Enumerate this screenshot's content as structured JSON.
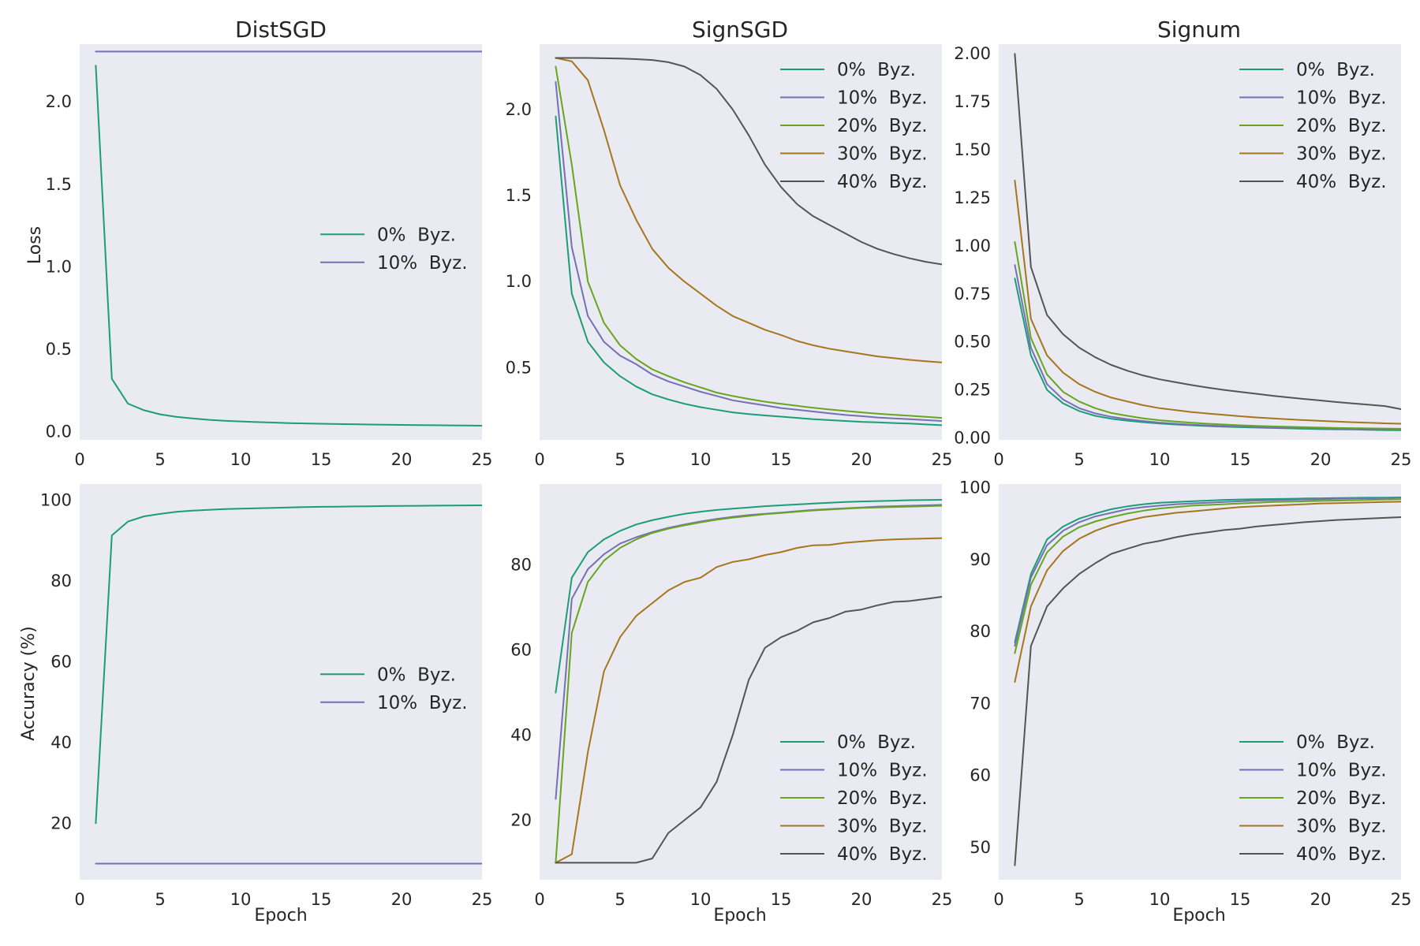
{
  "chart_data": [
    {
      "id": "distsgd-loss",
      "type": "line",
      "title": "DistSGD",
      "xlabel": "",
      "ylabel": "Loss",
      "xlim": [
        0,
        25
      ],
      "ylim": [
        -0.05,
        2.35
      ],
      "xticks": [
        0,
        5,
        10,
        15,
        20,
        25
      ],
      "xticklabels": [
        "0",
        "5",
        "10",
        "15",
        "20",
        "25"
      ],
      "yticks": [
        0.0,
        0.5,
        1.0,
        1.5,
        2.0
      ],
      "yticklabels": [
        "0.0",
        "0.5",
        "1.0",
        "1.5",
        "2.0"
      ],
      "legend": "center-right",
      "grid": false,
      "x": [
        1,
        2,
        3,
        4,
        5,
        6,
        7,
        8,
        9,
        10,
        11,
        12,
        13,
        14,
        15,
        16,
        17,
        18,
        19,
        20,
        21,
        22,
        23,
        24,
        25
      ],
      "series": [
        {
          "name": "0%  Byz.",
          "color": "#1b9e77",
          "values": [
            2.22,
            0.32,
            0.17,
            0.13,
            0.105,
            0.09,
            0.08,
            0.072,
            0.066,
            0.062,
            0.058,
            0.055,
            0.052,
            0.05,
            0.048,
            0.046,
            0.045,
            0.043,
            0.042,
            0.041,
            0.04,
            0.039,
            0.038,
            0.037,
            0.036
          ]
        },
        {
          "name": "10%  Byz.",
          "color": "#7570b3",
          "values": [
            2.305,
            2.305,
            2.305,
            2.305,
            2.305,
            2.305,
            2.305,
            2.305,
            2.305,
            2.305,
            2.305,
            2.305,
            2.305,
            2.305,
            2.305,
            2.305,
            2.305,
            2.305,
            2.305,
            2.305,
            2.305,
            2.305,
            2.305,
            2.305,
            2.305
          ]
        }
      ]
    },
    {
      "id": "signsgd-loss",
      "type": "line",
      "title": "SignSGD",
      "xlabel": "",
      "ylabel": "",
      "xlim": [
        0,
        25
      ],
      "ylim": [
        0.08,
        2.38
      ],
      "xticks": [
        0,
        5,
        10,
        15,
        20,
        25
      ],
      "xticklabels": [
        "0",
        "5",
        "10",
        "15",
        "20",
        "25"
      ],
      "yticks": [
        0.5,
        1.0,
        1.5,
        2.0
      ],
      "yticklabels": [
        "0.5",
        "1.0",
        "1.5",
        "2.0"
      ],
      "legend": "top-right",
      "grid": false,
      "x": [
        1,
        2,
        3,
        4,
        5,
        6,
        7,
        8,
        9,
        10,
        11,
        12,
        13,
        14,
        15,
        16,
        17,
        18,
        19,
        20,
        21,
        22,
        23,
        24,
        25
      ],
      "series": [
        {
          "name": "0%  Byz.",
          "color": "#1b9e77",
          "values": [
            1.96,
            0.93,
            0.65,
            0.53,
            0.45,
            0.39,
            0.345,
            0.315,
            0.29,
            0.27,
            0.255,
            0.24,
            0.23,
            0.222,
            0.215,
            0.208,
            0.2,
            0.195,
            0.19,
            0.185,
            0.182,
            0.178,
            0.175,
            0.17,
            0.165
          ]
        },
        {
          "name": "10%  Byz.",
          "color": "#7570b3",
          "values": [
            2.16,
            1.2,
            0.8,
            0.65,
            0.57,
            0.52,
            0.46,
            0.42,
            0.39,
            0.36,
            0.335,
            0.31,
            0.295,
            0.28,
            0.265,
            0.255,
            0.245,
            0.235,
            0.225,
            0.218,
            0.21,
            0.205,
            0.2,
            0.195,
            0.19
          ]
        },
        {
          "name": "20%  Byz.",
          "color": "#66a61e",
          "values": [
            2.25,
            1.68,
            1.0,
            0.76,
            0.63,
            0.55,
            0.49,
            0.45,
            0.415,
            0.385,
            0.355,
            0.335,
            0.318,
            0.302,
            0.29,
            0.278,
            0.267,
            0.257,
            0.248,
            0.24,
            0.232,
            0.226,
            0.22,
            0.214,
            0.208
          ]
        },
        {
          "name": "30%  Byz.",
          "color": "#a6761d",
          "values": [
            2.3,
            2.28,
            2.17,
            1.88,
            1.56,
            1.36,
            1.19,
            1.08,
            1.0,
            0.93,
            0.86,
            0.8,
            0.76,
            0.72,
            0.69,
            0.655,
            0.63,
            0.61,
            0.595,
            0.58,
            0.565,
            0.555,
            0.545,
            0.537,
            0.53
          ]
        },
        {
          "name": "40%  Byz.",
          "color": "#555555",
          "values": [
            2.3,
            2.3,
            2.3,
            2.298,
            2.296,
            2.293,
            2.288,
            2.275,
            2.25,
            2.2,
            2.12,
            2.0,
            1.85,
            1.68,
            1.55,
            1.45,
            1.38,
            1.33,
            1.28,
            1.23,
            1.19,
            1.16,
            1.135,
            1.115,
            1.1
          ]
        }
      ]
    },
    {
      "id": "signum-loss",
      "type": "line",
      "title": "Signum",
      "xlabel": "",
      "ylabel": "",
      "xlim": [
        0,
        25
      ],
      "ylim": [
        -0.01,
        2.05
      ],
      "xticks": [
        0,
        5,
        10,
        15,
        20,
        25
      ],
      "xticklabels": [
        "0",
        "5",
        "10",
        "15",
        "20",
        "25"
      ],
      "yticks": [
        0.0,
        0.25,
        0.5,
        0.75,
        1.0,
        1.25,
        1.5,
        1.75,
        2.0
      ],
      "yticklabels": [
        "0.00",
        "0.25",
        "0.50",
        "0.75",
        "1.00",
        "1.25",
        "1.50",
        "1.75",
        "2.00"
      ],
      "legend": "top-right",
      "grid": false,
      "x": [
        1,
        2,
        3,
        4,
        5,
        6,
        7,
        8,
        9,
        10,
        11,
        12,
        13,
        14,
        15,
        16,
        17,
        18,
        19,
        20,
        21,
        22,
        23,
        24,
        25
      ],
      "series": [
        {
          "name": "0%  Byz.",
          "color": "#1b9e77",
          "values": [
            0.83,
            0.43,
            0.25,
            0.18,
            0.14,
            0.115,
            0.1,
            0.09,
            0.082,
            0.075,
            0.07,
            0.066,
            0.062,
            0.059,
            0.056,
            0.054,
            0.052,
            0.05,
            0.048,
            0.046,
            0.045,
            0.044,
            0.042,
            0.041,
            0.04
          ]
        },
        {
          "name": "10%  Byz.",
          "color": "#7570b3",
          "values": [
            0.9,
            0.47,
            0.28,
            0.2,
            0.155,
            0.128,
            0.11,
            0.098,
            0.088,
            0.08,
            0.074,
            0.069,
            0.065,
            0.062,
            0.059,
            0.057,
            0.055,
            0.053,
            0.051,
            0.05,
            0.049,
            0.048,
            0.047,
            0.046,
            0.045
          ]
        },
        {
          "name": "20%  Byz.",
          "color": "#66a61e",
          "values": [
            1.02,
            0.52,
            0.33,
            0.24,
            0.19,
            0.155,
            0.13,
            0.115,
            0.102,
            0.092,
            0.085,
            0.079,
            0.074,
            0.07,
            0.066,
            0.063,
            0.06,
            0.058,
            0.056,
            0.054,
            0.052,
            0.051,
            0.05,
            0.049,
            0.048
          ]
        },
        {
          "name": "30%  Byz.",
          "color": "#a6761d",
          "values": [
            1.34,
            0.62,
            0.43,
            0.34,
            0.28,
            0.24,
            0.21,
            0.19,
            0.17,
            0.155,
            0.145,
            0.135,
            0.127,
            0.12,
            0.113,
            0.107,
            0.102,
            0.097,
            0.093,
            0.089,
            0.085,
            0.082,
            0.079,
            0.076,
            0.074
          ]
        },
        {
          "name": "40%  Byz.",
          "color": "#555555",
          "values": [
            2.0,
            0.89,
            0.64,
            0.54,
            0.47,
            0.42,
            0.38,
            0.35,
            0.325,
            0.305,
            0.29,
            0.275,
            0.262,
            0.25,
            0.24,
            0.23,
            0.22,
            0.211,
            0.203,
            0.195,
            0.187,
            0.18,
            0.173,
            0.166,
            0.15
          ]
        }
      ]
    },
    {
      "id": "distsgd-accuracy",
      "type": "line",
      "title": "",
      "xlabel": "Epoch",
      "ylabel": "Accuracy (%)",
      "xlim": [
        0,
        25
      ],
      "ylim": [
        6,
        104
      ],
      "xticks": [
        0,
        5,
        10,
        15,
        20,
        25
      ],
      "xticklabels": [
        "0",
        "5",
        "10",
        "15",
        "20",
        "25"
      ],
      "yticks": [
        20,
        40,
        60,
        80,
        100
      ],
      "yticklabels": [
        "20",
        "40",
        "60",
        "80",
        "100"
      ],
      "legend": "center-right",
      "grid": false,
      "x": [
        1,
        2,
        3,
        4,
        5,
        6,
        7,
        8,
        9,
        10,
        11,
        12,
        13,
        14,
        15,
        16,
        17,
        18,
        19,
        20,
        21,
        22,
        23,
        24,
        25
      ],
      "series": [
        {
          "name": "0%  Byz.",
          "color": "#1b9e77",
          "values": [
            20,
            91.3,
            94.7,
            96.0,
            96.6,
            97.1,
            97.4,
            97.6,
            97.8,
            97.9,
            98.0,
            98.1,
            98.2,
            98.3,
            98.35,
            98.4,
            98.45,
            98.5,
            98.55,
            98.6,
            98.62,
            98.65,
            98.68,
            98.7,
            98.72
          ]
        },
        {
          "name": "10%  Byz.",
          "color": "#7570b3",
          "values": [
            10,
            10,
            10,
            10,
            10,
            10,
            10,
            10,
            10,
            10,
            10,
            10,
            10,
            10,
            10,
            10,
            10,
            10,
            10,
            10,
            10,
            10,
            10,
            10,
            10
          ]
        }
      ]
    },
    {
      "id": "signsgd-accuracy",
      "type": "line",
      "title": "",
      "xlabel": "Epoch",
      "ylabel": "",
      "xlim": [
        0,
        25
      ],
      "ylim": [
        6,
        99
      ],
      "xticks": [
        0,
        5,
        10,
        15,
        20,
        25
      ],
      "xticklabels": [
        "0",
        "5",
        "10",
        "15",
        "20",
        "25"
      ],
      "yticks": [
        20,
        40,
        60,
        80
      ],
      "yticklabels": [
        "20",
        "40",
        "60",
        "80"
      ],
      "legend": "bottom-right",
      "grid": false,
      "x": [
        1,
        2,
        3,
        4,
        5,
        6,
        7,
        8,
        9,
        10,
        11,
        12,
        13,
        14,
        15,
        16,
        17,
        18,
        19,
        20,
        21,
        22,
        23,
        24,
        25
      ],
      "series": [
        {
          "name": "0%  Byz.",
          "color": "#1b9e77",
          "values": [
            50,
            77,
            83,
            86,
            88,
            89.5,
            90.5,
            91.3,
            92.0,
            92.5,
            92.9,
            93.2,
            93.5,
            93.8,
            94.0,
            94.2,
            94.4,
            94.6,
            94.8,
            94.9,
            95.0,
            95.1,
            95.2,
            95.25,
            95.3
          ]
        },
        {
          "name": "10%  Byz.",
          "color": "#7570b3",
          "values": [
            25,
            72,
            79,
            82.5,
            85,
            86.5,
            87.7,
            88.7,
            89.5,
            90.2,
            90.8,
            91.3,
            91.7,
            92.0,
            92.3,
            92.6,
            92.9,
            93.1,
            93.3,
            93.5,
            93.7,
            93.8,
            93.9,
            94.0,
            94.1
          ]
        },
        {
          "name": "20%  Byz.",
          "color": "#66a61e",
          "values": [
            10,
            64,
            76,
            81,
            84,
            86,
            87.5,
            88.5,
            89.3,
            90,
            90.6,
            91.1,
            91.5,
            91.9,
            92.2,
            92.5,
            92.8,
            93.0,
            93.2,
            93.4,
            93.5,
            93.6,
            93.7,
            93.8,
            93.9
          ]
        },
        {
          "name": "30%  Byz.",
          "color": "#a6761d",
          "values": [
            10,
            12,
            36,
            55,
            63,
            68,
            71,
            74,
            76,
            77,
            79.5,
            80.7,
            81.3,
            82.3,
            83,
            84,
            84.6,
            84.7,
            85.2,
            85.5,
            85.8,
            86,
            86.1,
            86.2,
            86.3
          ]
        },
        {
          "name": "40%  Byz.",
          "color": "#555555",
          "values": [
            10,
            10,
            10,
            10,
            10,
            10,
            11,
            17,
            20,
            23,
            29,
            40,
            53,
            60.5,
            63,
            64.5,
            66.5,
            67.5,
            69,
            69.5,
            70.5,
            71.3,
            71.5,
            72,
            72.5
          ]
        }
      ]
    },
    {
      "id": "signum-accuracy",
      "type": "line",
      "title": "",
      "xlabel": "Epoch",
      "ylabel": "",
      "xlim": [
        0,
        25
      ],
      "ylim": [
        45.5,
        100.5
      ],
      "xticks": [
        0,
        5,
        10,
        15,
        20,
        25
      ],
      "xticklabels": [
        "0",
        "5",
        "10",
        "15",
        "20",
        "25"
      ],
      "yticks": [
        50,
        60,
        70,
        80,
        90,
        100
      ],
      "yticklabels": [
        "50",
        "60",
        "70",
        "80",
        "90",
        "100"
      ],
      "legend": "bottom-right",
      "grid": false,
      "x": [
        1,
        2,
        3,
        4,
        5,
        6,
        7,
        8,
        9,
        10,
        11,
        12,
        13,
        14,
        15,
        16,
        17,
        18,
        19,
        20,
        21,
        22,
        23,
        24,
        25
      ],
      "series": [
        {
          "name": "0%  Byz.",
          "color": "#1b9e77",
          "values": [
            78.5,
            88,
            92.8,
            94.6,
            95.7,
            96.4,
            97.0,
            97.4,
            97.7,
            97.9,
            98.0,
            98.1,
            98.2,
            98.3,
            98.35,
            98.4,
            98.42,
            98.45,
            98.5,
            98.52,
            98.55,
            98.58,
            98.6,
            98.62,
            98.65
          ]
        },
        {
          "name": "10%  Byz.",
          "color": "#7570b3",
          "values": [
            78,
            87.5,
            92,
            94,
            95.2,
            96,
            96.5,
            97,
            97.3,
            97.5,
            97.7,
            97.8,
            97.9,
            98.0,
            98.1,
            98.2,
            98.25,
            98.3,
            98.35,
            98.4,
            98.45,
            98.5,
            98.52,
            98.55,
            98.6
          ]
        },
        {
          "name": "20%  Byz.",
          "color": "#66a61e",
          "values": [
            77,
            86.5,
            91,
            93.2,
            94.5,
            95.3,
            95.9,
            96.4,
            96.8,
            97.1,
            97.3,
            97.5,
            97.6,
            97.7,
            97.8,
            97.9,
            98.0,
            98.05,
            98.1,
            98.15,
            98.2,
            98.25,
            98.3,
            98.35,
            98.4
          ]
        },
        {
          "name": "30%  Byz.",
          "color": "#a6761d",
          "values": [
            73,
            83.5,
            88.5,
            91.2,
            92.9,
            94.0,
            94.8,
            95.4,
            95.9,
            96.2,
            96.5,
            96.7,
            96.9,
            97.1,
            97.3,
            97.4,
            97.5,
            97.6,
            97.7,
            97.8,
            97.85,
            97.9,
            97.95,
            98.0,
            98.05
          ]
        },
        {
          "name": "40%  Byz.",
          "color": "#555555",
          "values": [
            47.5,
            78,
            83.5,
            86,
            88,
            89.5,
            90.8,
            91.5,
            92.2,
            92.6,
            93.1,
            93.5,
            93.8,
            94.1,
            94.3,
            94.6,
            94.8,
            95.0,
            95.2,
            95.35,
            95.5,
            95.6,
            95.7,
            95.8,
            95.9
          ]
        }
      ]
    }
  ]
}
